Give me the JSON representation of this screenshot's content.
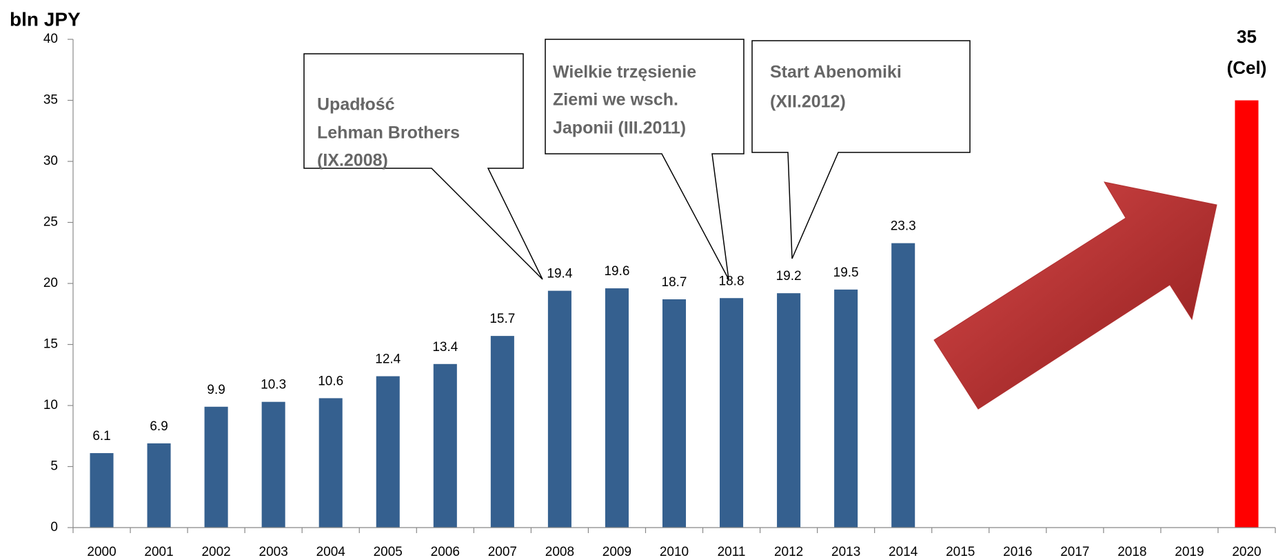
{
  "chart_data": {
    "type": "bar",
    "y_label": "bln JPY",
    "categories": [
      "2000",
      "2001",
      "2002",
      "2003",
      "2004",
      "2005",
      "2006",
      "2007",
      "2008",
      "2009",
      "2010",
      "2011",
      "2012",
      "2013",
      "2014",
      "2015",
      "2016",
      "2017",
      "2018",
      "2019",
      "2020"
    ],
    "series": [
      {
        "color": "#35608f",
        "values": [
          6.1,
          6.9,
          9.9,
          10.3,
          10.6,
          12.4,
          13.4,
          15.7,
          19.4,
          19.6,
          18.7,
          18.8,
          19.2,
          19.5,
          23.3,
          null,
          null,
          null,
          null,
          null,
          null
        ]
      },
      {
        "color": "#ff0000",
        "values": [
          null,
          null,
          null,
          null,
          null,
          null,
          null,
          null,
          null,
          null,
          null,
          null,
          null,
          null,
          null,
          null,
          null,
          null,
          null,
          null,
          35
        ],
        "note": "(Cel)"
      }
    ],
    "ylim": [
      0,
      40
    ],
    "yticks": [
      0,
      5,
      10,
      15,
      20,
      25,
      30,
      35,
      40
    ],
    "annotations": [
      {
        "lines": [
          "Upadłość",
          "Lehman Brothers",
          "(IX.2008)"
        ]
      },
      {
        "lines": [
          "Wielkie trzęsienie",
          "Ziemi we wsch.",
          "Japonii (III.2011)"
        ]
      },
      {
        "lines": [
          "Start Abenomiki",
          "(XII.2012)"
        ]
      }
    ]
  }
}
